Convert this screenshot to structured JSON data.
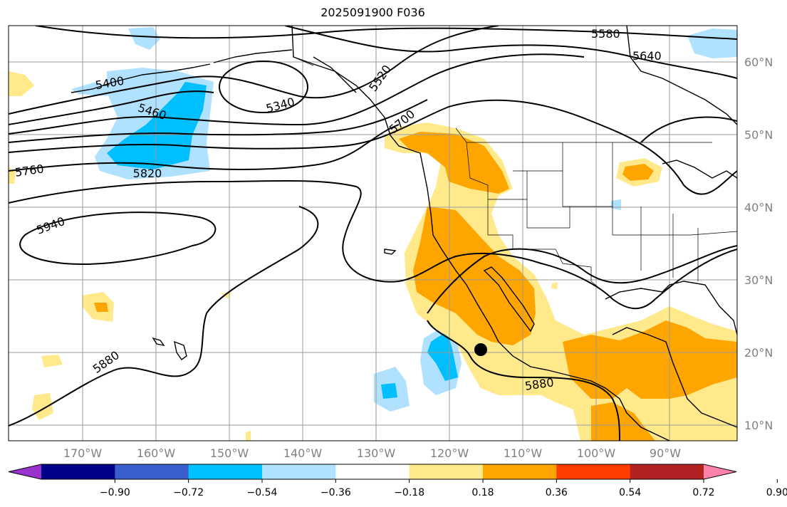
{
  "title": "2025091900 F036",
  "lat_labels": [
    "60°N",
    "50°N",
    "40°N",
    "30°N",
    "20°N",
    "10°N"
  ],
  "lon_labels": [
    "170°W",
    "160°W",
    "150°W",
    "140°W",
    "130°W",
    "120°W",
    "110°W",
    "100°W",
    "90°W"
  ],
  "contour_labels": [
    "5580",
    "5640",
    "5520",
    "5400",
    "5340",
    "5460",
    "5700",
    "5760",
    "5820",
    "5940",
    "5880",
    "5880"
  ],
  "colorbar": {
    "ticks": [
      "−0.90",
      "−0.72",
      "−0.54",
      "−0.36",
      "−0.18",
      "0.18",
      "0.36",
      "0.54",
      "0.72",
      "0.90"
    ],
    "colors": [
      "#9a32cd",
      "#00008b",
      "#3a5fcd",
      "#00bfff",
      "#b0e2ff",
      "#ffffff",
      "#ffe98a",
      "#ffa500",
      "#ff3d00",
      "#b22222",
      "#ff82ab"
    ]
  },
  "marker": {
    "symbol": "black-dot",
    "lat": 20.3,
    "lon": -115.5
  }
}
